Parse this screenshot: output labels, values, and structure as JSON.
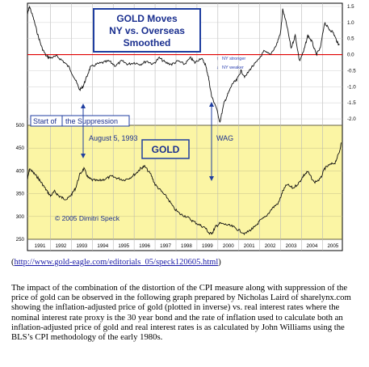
{
  "chart_data": {
    "type": "line",
    "x_categories": [
      "1991",
      "1992",
      "1993",
      "1994",
      "1995",
      "1996",
      "1997",
      "1998",
      "1999",
      "2000",
      "2001",
      "2002",
      "2003",
      "2004",
      "2005"
    ],
    "top_panel": {
      "title_lines": [
        "GOLD Moves",
        "NY vs. Overseas",
        "Smoothed"
      ],
      "ylim": [
        -2.2,
        1.6
      ],
      "ytick_labels": [
        "1.5",
        "1.0",
        "0.5",
        "0.0",
        "-0.5",
        "-1.0",
        "-1.5",
        "-2.0"
      ],
      "ytick_values": [
        1.5,
        1.0,
        0.5,
        0.0,
        -0.5,
        -1.0,
        -1.5,
        -2.0
      ],
      "zero_line_color": "#e00000",
      "legend_up": "NY stronger",
      "legend_down": "NY weaker",
      "series": [
        {
          "x": [
            1990.9,
            1991.0,
            1991.2,
            1991.4,
            1991.6,
            1991.8,
            1992.0,
            1992.3,
            1992.6,
            1992.9,
            1993.2,
            1993.4,
            1993.55,
            1993.7,
            1993.9,
            1994.2,
            1994.5,
            1994.8,
            1995.1,
            1995.4,
            1995.7,
            1996.0,
            1996.3,
            1996.6,
            1996.9,
            1997.2,
            1997.5,
            1997.8,
            1998.1,
            1998.4,
            1998.7,
            1998.9,
            1999.2,
            1999.4,
            1999.55,
            1999.7,
            1999.9,
            2000.1,
            2000.3,
            2000.5,
            2000.7,
            2000.9,
            2001.1,
            2001.3,
            2001.6,
            2001.9,
            2002.2,
            2002.5,
            2002.8,
            2003.0,
            2003.1,
            2003.3,
            2003.5,
            2003.7,
            2003.9,
            2004.1,
            2004.3,
            2004.5,
            2004.7,
            2004.9,
            2005.1,
            2005.3,
            2005.5,
            2005.7,
            2005.8
          ],
          "y": [
            1.25,
            1.5,
            1.1,
            0.6,
            0.2,
            -0.05,
            -0.1,
            -0.05,
            -0.2,
            -0.4,
            -0.8,
            -1.1,
            -1.0,
            -0.75,
            -0.4,
            -0.3,
            -0.25,
            -0.2,
            -0.35,
            -0.2,
            -0.3,
            -0.25,
            -0.3,
            -0.2,
            -0.3,
            -0.1,
            -0.25,
            -0.3,
            -0.2,
            -0.3,
            -0.1,
            -0.25,
            -0.1,
            -0.3,
            -0.7,
            -1.3,
            -1.6,
            -2.1,
            -1.5,
            -1.2,
            -0.9,
            -0.8,
            -0.5,
            -0.7,
            -0.4,
            -0.2,
            0.1,
            0.0,
            0.3,
            0.7,
            1.4,
            0.9,
            0.2,
            0.6,
            -0.2,
            0.1,
            0.6,
            0.4,
            0.0,
            0.2,
            1.0,
            0.8,
            0.7,
            0.4,
            0.3
          ]
        }
      ]
    },
    "bottom_panel": {
      "title": "GOLD",
      "ylim": [
        250,
        500
      ],
      "ytick_labels": [
        "500",
        "450",
        "400",
        "350",
        "300",
        "250"
      ],
      "ytick_values": [
        500,
        450,
        400,
        350,
        300,
        250
      ],
      "series": [
        {
          "x": [
            1990.9,
            1991.0,
            1991.2,
            1991.4,
            1991.6,
            1991.8,
            1992.0,
            1992.2,
            1992.4,
            1992.6,
            1992.8,
            1993.0,
            1993.2,
            1993.4,
            1993.6,
            1993.8,
            1994.0,
            1994.3,
            1994.6,
            1994.9,
            1995.2,
            1995.5,
            1995.8,
            1996.1,
            1996.3,
            1996.5,
            1996.8,
            1997.0,
            1997.3,
            1997.6,
            1997.9,
            1998.2,
            1998.5,
            1998.8,
            1999.1,
            1999.4,
            1999.6,
            1999.75,
            1999.9,
            2000.1,
            2000.4,
            2000.7,
            2001.0,
            2001.3,
            2001.6,
            2001.8,
            2002.0,
            2002.3,
            2002.6,
            2002.9,
            2003.1,
            2003.3,
            2003.6,
            2003.9,
            2004.1,
            2004.3,
            2004.6,
            2004.9,
            2005.1,
            2005.3,
            2005.6,
            2005.8,
            2005.9
          ],
          "y": [
            380,
            405,
            395,
            385,
            372,
            358,
            345,
            355,
            345,
            340,
            338,
            348,
            362,
            392,
            405,
            385,
            380,
            378,
            382,
            388,
            384,
            380,
            385,
            395,
            405,
            410,
            392,
            370,
            355,
            340,
            318,
            305,
            300,
            290,
            282,
            275,
            262,
            265,
            278,
            285,
            282,
            278,
            270,
            262,
            272,
            278,
            290,
            300,
            318,
            330,
            355,
            370,
            362,
            375,
            390,
            398,
            375,
            382,
            405,
            412,
            418,
            440,
            462
          ]
        }
      ]
    },
    "annotations": {
      "suppression_prefix": "Start of",
      "suppression_label": "the Suppression",
      "date_label": "August 5, 1993",
      "wag_label": "WAG",
      "copyright": "© 2005 Dimitri Speck"
    }
  },
  "link": {
    "open": "(",
    "url": "http://www.gold-eagle.com/editorials_05/speck120605.html",
    "close": ")"
  },
  "paragraph": "The impact of the combination of the distortion of the CPI measure along with suppression of the price of gold can be observed in the following graph prepared by Nicholas Laird of sharelynx.com showing the inflation-adjusted price of gold (plotted in inverse) vs. real interest rates where the nominal interest rate proxy is the 30 year bond and the rate of inflation used to calculate both an inflation-adjusted price of gold and real interest rates is as calculated by John Williams using the BLS’s CPI methodology of the early 1980s."
}
